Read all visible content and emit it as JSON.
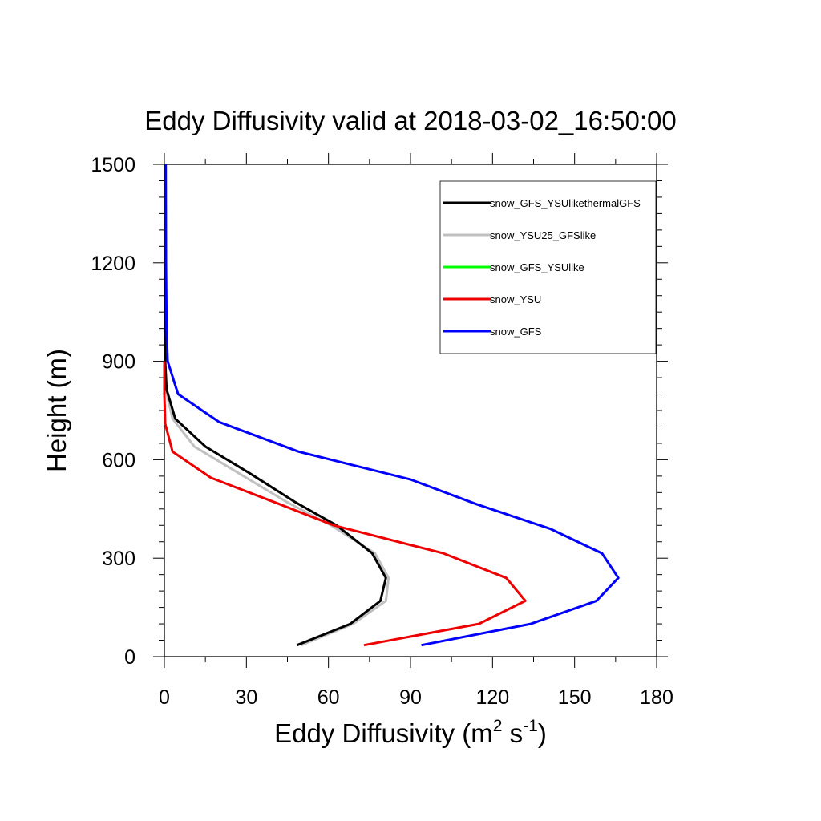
{
  "chart_data": {
    "type": "line",
    "title": "Eddy Diffusivity valid at 2018-03-02_16:50:00",
    "xlabel_main": "Eddy Diffusivity (m",
    "xlabel_sup1": "2",
    "xlabel_mid": " s",
    "xlabel_sup2": "-1",
    "xlabel_end": ")",
    "ylabel": "Height (m)",
    "xlim": [
      0,
      180
    ],
    "ylim": [
      0,
      1500
    ],
    "x_ticks": [
      0,
      30,
      60,
      90,
      120,
      150,
      180
    ],
    "y_ticks": [
      0,
      300,
      600,
      900,
      1200,
      1500
    ],
    "x_tick_labels": [
      "0",
      "30",
      "60",
      "90",
      "120",
      "150",
      "180"
    ],
    "y_tick_labels": [
      "0",
      "300",
      "600",
      "900",
      "1200",
      "1500"
    ],
    "legend_position": "top-right",
    "series": [
      {
        "name": "snow_GFS_YSUlikethermalGFS",
        "color": "#000000",
        "x": [
          48.5,
          68,
          79,
          81,
          76,
          63,
          48,
          31,
          15,
          4,
          0.8,
          0.3,
          0.2,
          0.2,
          0.2
        ],
        "y": [
          35,
          100,
          170,
          240,
          315,
          400,
          470,
          560,
          640,
          725,
          815,
          900,
          1000,
          1200,
          1500
        ]
      },
      {
        "name": "snow_YSU25_GFSlike",
        "color": "#c0c0c0",
        "x": [
          50,
          69,
          81,
          82,
          77,
          61,
          45,
          27,
          11,
          3,
          0.5,
          0.2,
          0.2,
          0.2,
          0.2
        ],
        "y": [
          35,
          100,
          170,
          240,
          315,
          400,
          470,
          560,
          640,
          725,
          815,
          900,
          1000,
          1200,
          1500
        ]
      },
      {
        "name": "snow_GFS_YSUlike",
        "color": "#00ff00",
        "x": [],
        "y": []
      },
      {
        "name": "snow_YSU",
        "color": "#ee0000",
        "x": [
          73,
          115,
          132,
          125,
          102,
          62,
          42,
          17,
          3,
          0.3,
          0,
          0
        ],
        "y": [
          35,
          100,
          170,
          240,
          315,
          400,
          465,
          545,
          625,
          710,
          800,
          900
        ]
      },
      {
        "name": "snow_GFS",
        "color": "#0000ff",
        "x": [
          94,
          134,
          158,
          166,
          160,
          141,
          114,
          90,
          49,
          20,
          5,
          1.2,
          0.8,
          0.6,
          0.5
        ],
        "y": [
          35,
          100,
          170,
          240,
          315,
          390,
          465,
          540,
          625,
          715,
          800,
          900,
          1000,
          1200,
          1500
        ]
      }
    ]
  }
}
